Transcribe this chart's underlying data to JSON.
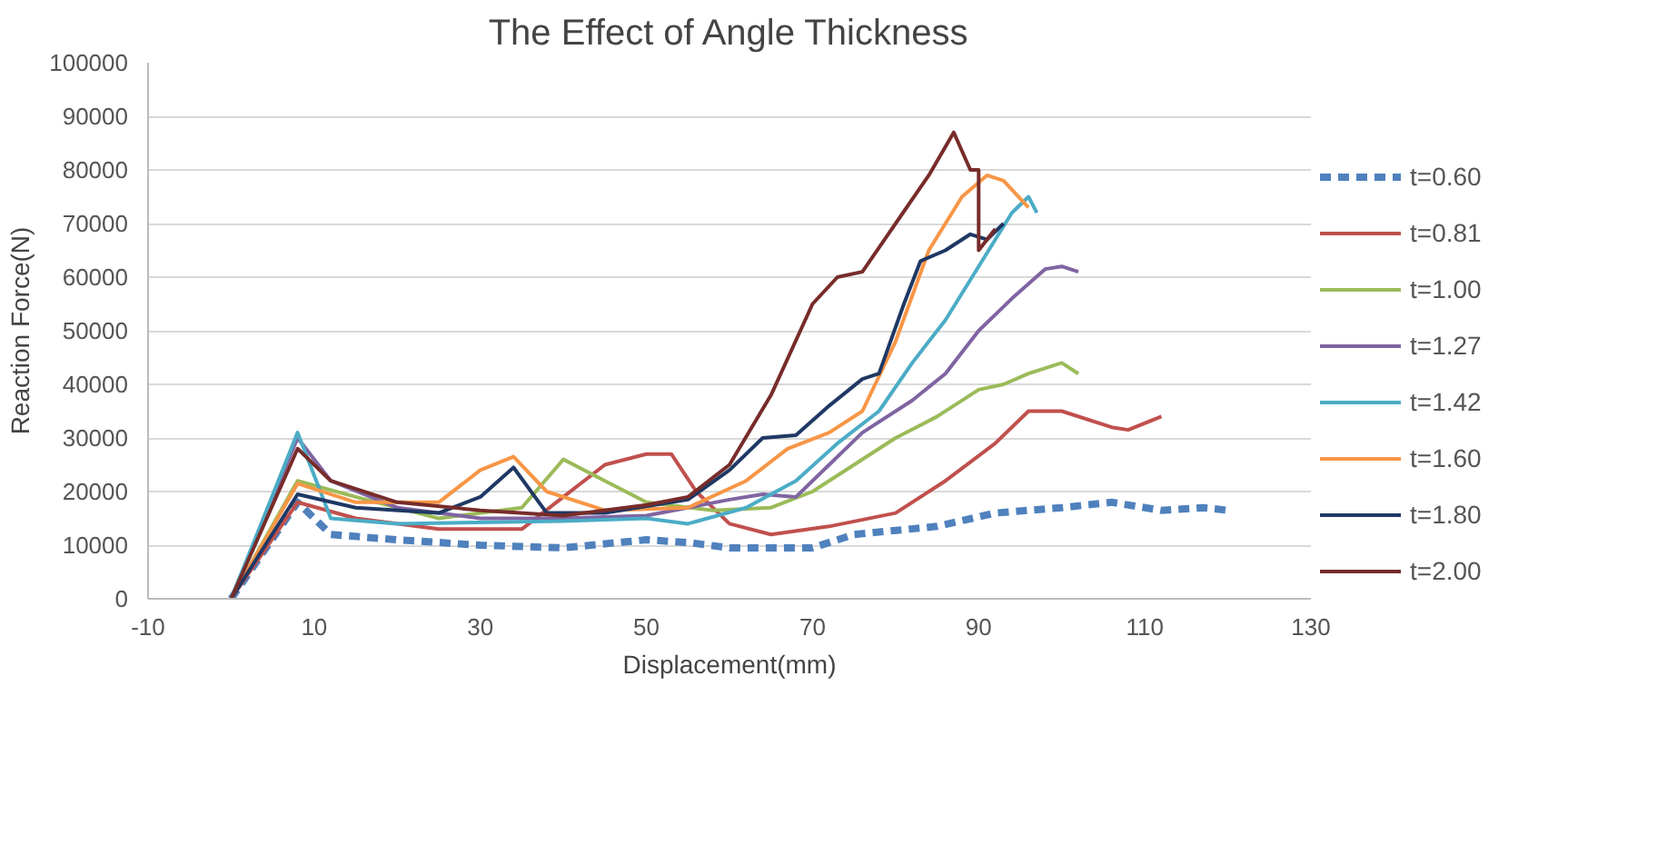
{
  "chart_data": {
    "type": "line",
    "title": "The Effect of Angle Thickness",
    "xlabel": "Displacement(mm)",
    "ylabel": "Reaction Force(N)",
    "xlim": [
      -10,
      130
    ],
    "xticks": [
      -10,
      10,
      30,
      50,
      70,
      90,
      110,
      130
    ],
    "ylim": [
      0,
      100000
    ],
    "yticks": [
      0,
      10000,
      20000,
      30000,
      40000,
      50000,
      60000,
      70000,
      80000,
      90000,
      100000
    ],
    "grid": "y",
    "legend": "right",
    "marker": "none",
    "series": [
      {
        "name": "t=0.60",
        "color": "#4f81bd",
        "line_style": "dashed",
        "x": [
          0,
          8,
          12,
          20,
          30,
          40,
          50,
          55,
          60,
          70,
          75,
          85,
          92,
          100,
          106,
          112,
          117,
          120
        ],
        "values": [
          0,
          18000,
          12000,
          11000,
          10000,
          9500,
          11000,
          10500,
          9500,
          9500,
          12000,
          13500,
          16000,
          17000,
          18000,
          16500,
          17000,
          16500
        ]
      },
      {
        "name": "t=0.81",
        "color": "#c0504d",
        "line_style": "solid",
        "x": [
          0,
          8,
          15,
          25,
          35,
          40,
          45,
          50,
          53,
          56,
          60,
          65,
          72,
          80,
          86,
          92,
          96,
          100,
          106,
          108,
          112
        ],
        "values": [
          0,
          18000,
          15000,
          13000,
          13000,
          19000,
          25000,
          27000,
          27000,
          20000,
          14000,
          12000,
          13500,
          16000,
          22000,
          29000,
          35000,
          35000,
          32000,
          31500,
          34000
        ]
      },
      {
        "name": "t=1.00",
        "color": "#9bbb59",
        "line_style": "solid",
        "x": [
          0,
          8,
          15,
          25,
          35,
          40,
          45,
          50,
          58,
          65,
          70,
          75,
          80,
          85,
          90,
          93,
          96,
          100,
          102
        ],
        "values": [
          0,
          22000,
          19000,
          15000,
          17000,
          26000,
          22000,
          18000,
          16500,
          17000,
          20000,
          25000,
          30000,
          34000,
          39000,
          40000,
          42000,
          44000,
          42000
        ]
      },
      {
        "name": "t=1.27",
        "color": "#8064a2",
        "line_style": "solid",
        "x": [
          0,
          8,
          12,
          20,
          30,
          40,
          50,
          60,
          64,
          68,
          72,
          76,
          82,
          86,
          90,
          94,
          98,
          100,
          102
        ],
        "values": [
          0,
          30000,
          22000,
          17000,
          15000,
          15000,
          15500,
          18500,
          19500,
          19000,
          25000,
          31000,
          37000,
          42000,
          50000,
          56000,
          61500,
          62000,
          61000
        ]
      },
      {
        "name": "t=1.42",
        "color": "#4bacc6",
        "line_style": "solid",
        "x": [
          0,
          8,
          12,
          20,
          40,
          50,
          55,
          62,
          68,
          73,
          78,
          82,
          86,
          90,
          94,
          96,
          97
        ],
        "values": [
          0,
          31000,
          15000,
          14000,
          14500,
          15000,
          14000,
          17000,
          22000,
          29000,
          35000,
          44000,
          52000,
          62000,
          72000,
          75000,
          72000
        ]
      },
      {
        "name": "t=1.60",
        "color": "#f79646",
        "line_style": "solid",
        "x": [
          0,
          8,
          15,
          25,
          30,
          34,
          38,
          45,
          55,
          62,
          67,
          72,
          76,
          80,
          84,
          88,
          91,
          93,
          96
        ],
        "values": [
          0,
          21500,
          18000,
          18000,
          24000,
          26500,
          20000,
          16500,
          17000,
          22000,
          28000,
          31000,
          35000,
          48000,
          65000,
          75000,
          79000,
          78000,
          73000
        ]
      },
      {
        "name": "t=1.80",
        "color": "#1f3864",
        "line_style": "solid",
        "x": [
          0,
          8,
          15,
          25,
          30,
          34,
          38,
          45,
          55,
          60,
          64,
          68,
          72,
          76,
          78,
          81,
          83,
          86,
          89,
          91,
          93
        ],
        "values": [
          0,
          19500,
          17000,
          16000,
          19000,
          24500,
          16000,
          16000,
          18500,
          24000,
          30000,
          30500,
          36000,
          41000,
          42000,
          55000,
          63000,
          65000,
          68000,
          67000,
          70000
        ]
      },
      {
        "name": "t=2.00",
        "color": "#772c2a",
        "line_style": "solid",
        "x": [
          0,
          8,
          12,
          20,
          30,
          40,
          50,
          55,
          60,
          65,
          70,
          73,
          76,
          80,
          84,
          87,
          89,
          90,
          90,
          92
        ],
        "values": [
          0,
          28000,
          22000,
          18000,
          16500,
          15500,
          17500,
          19000,
          25000,
          38000,
          55000,
          60000,
          61000,
          70000,
          79000,
          87000,
          80000,
          80000,
          65000,
          69000
        ]
      }
    ]
  }
}
